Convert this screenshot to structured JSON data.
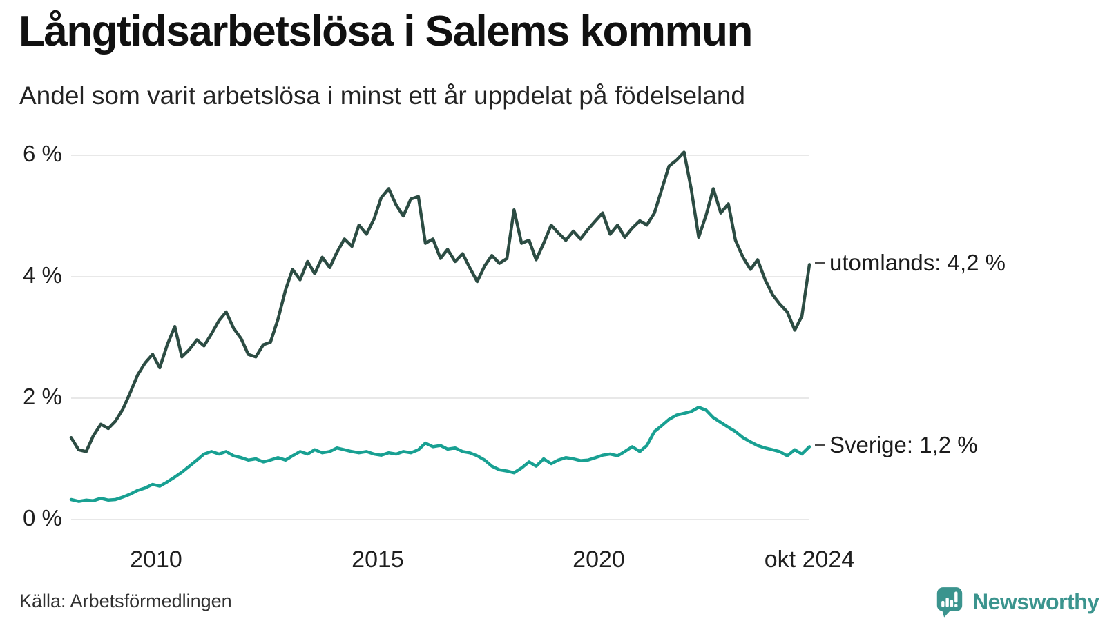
{
  "header": {
    "title": "Långtidsarbetslösa i Salems kommun",
    "subtitle": "Andel som varit arbetslösa i minst ett år uppdelat på födelseland"
  },
  "chart_data": {
    "type": "line",
    "title": "Långtidsarbetslösa i Salems kommun",
    "xlabel": "",
    "ylabel": "",
    "x_unit": "decimal_year_monthly",
    "grid": "horizontal-only",
    "gridline_color": "#e8e8e8",
    "legend_position": "line-end-right",
    "xlim": [
      2008.08,
      2024.75
    ],
    "ylim": [
      0,
      6
    ],
    "y_ticks": [
      {
        "value": 0,
        "label": "0 %"
      },
      {
        "value": 2,
        "label": "2 %"
      },
      {
        "value": 4,
        "label": "4 %"
      },
      {
        "value": 6,
        "label": "6 %"
      }
    ],
    "x_ticks": [
      {
        "value": 2010,
        "label": "2010"
      },
      {
        "value": 2015,
        "label": "2015"
      },
      {
        "value": 2020,
        "label": "2020"
      },
      {
        "value": 2024.75,
        "label": "okt 2024"
      }
    ],
    "x": [
      2008.08,
      2008.25,
      2008.42,
      2008.58,
      2008.75,
      2008.92,
      2009.08,
      2009.25,
      2009.42,
      2009.58,
      2009.75,
      2009.92,
      2010.08,
      2010.25,
      2010.42,
      2010.58,
      2010.75,
      2010.92,
      2011.08,
      2011.25,
      2011.42,
      2011.58,
      2011.75,
      2011.92,
      2012.08,
      2012.25,
      2012.42,
      2012.58,
      2012.75,
      2012.92,
      2013.08,
      2013.25,
      2013.42,
      2013.58,
      2013.75,
      2013.92,
      2014.08,
      2014.25,
      2014.42,
      2014.58,
      2014.75,
      2014.92,
      2015.08,
      2015.25,
      2015.42,
      2015.58,
      2015.75,
      2015.92,
      2016.08,
      2016.25,
      2016.42,
      2016.58,
      2016.75,
      2016.92,
      2017.08,
      2017.25,
      2017.42,
      2017.58,
      2017.75,
      2017.92,
      2018.08,
      2018.25,
      2018.42,
      2018.58,
      2018.75,
      2018.92,
      2019.08,
      2019.25,
      2019.42,
      2019.58,
      2019.75,
      2019.92,
      2020.08,
      2020.25,
      2020.42,
      2020.58,
      2020.75,
      2020.92,
      2021.08,
      2021.25,
      2021.42,
      2021.58,
      2021.75,
      2021.92,
      2022.08,
      2022.25,
      2022.42,
      2022.58,
      2022.75,
      2022.92,
      2023.08,
      2023.25,
      2023.42,
      2023.58,
      2023.75,
      2023.92,
      2024.08,
      2024.25,
      2024.42,
      2024.58,
      2024.75
    ],
    "series": [
      {
        "name": "utomlands",
        "end_label": "utomlands: 4,2 %",
        "last_value": 4.2,
        "color": "#2c4c43",
        "values": [
          1.35,
          1.15,
          1.12,
          1.38,
          1.57,
          1.5,
          1.62,
          1.82,
          2.1,
          2.38,
          2.58,
          2.72,
          2.5,
          2.88,
          3.18,
          2.68,
          2.8,
          2.96,
          2.86,
          3.06,
          3.28,
          3.42,
          3.15,
          2.98,
          2.72,
          2.68,
          2.88,
          2.92,
          3.3,
          3.78,
          4.12,
          3.95,
          4.25,
          4.05,
          4.32,
          4.15,
          4.4,
          4.62,
          4.5,
          4.85,
          4.7,
          4.95,
          5.3,
          5.45,
          5.18,
          5.0,
          5.28,
          5.32,
          4.55,
          4.62,
          4.3,
          4.45,
          4.25,
          4.38,
          4.15,
          3.92,
          4.18,
          4.35,
          4.22,
          4.3,
          5.1,
          4.55,
          4.6,
          4.28,
          4.55,
          4.85,
          4.72,
          4.6,
          4.75,
          4.62,
          4.78,
          4.92,
          5.05,
          4.7,
          4.85,
          4.65,
          4.8,
          4.92,
          4.85,
          5.05,
          5.45,
          5.82,
          5.92,
          6.05,
          5.45,
          4.65,
          5.02,
          5.45,
          5.05,
          5.2,
          4.6,
          4.32,
          4.12,
          4.28,
          3.95,
          3.7,
          3.55,
          3.42,
          3.12,
          3.35,
          4.2
        ]
      },
      {
        "name": "Sverige",
        "end_label": "Sverige: 1,2 %",
        "last_value": 1.2,
        "color": "#18a092",
        "values": [
          0.33,
          0.3,
          0.32,
          0.31,
          0.35,
          0.32,
          0.33,
          0.37,
          0.42,
          0.48,
          0.52,
          0.58,
          0.55,
          0.62,
          0.7,
          0.78,
          0.88,
          0.98,
          1.08,
          1.12,
          1.08,
          1.12,
          1.05,
          1.02,
          0.98,
          1.0,
          0.95,
          0.98,
          1.02,
          0.98,
          1.05,
          1.12,
          1.08,
          1.15,
          1.1,
          1.12,
          1.18,
          1.15,
          1.12,
          1.1,
          1.12,
          1.08,
          1.06,
          1.1,
          1.08,
          1.12,
          1.1,
          1.15,
          1.26,
          1.2,
          1.22,
          1.16,
          1.18,
          1.12,
          1.1,
          1.05,
          0.98,
          0.88,
          0.82,
          0.8,
          0.77,
          0.85,
          0.95,
          0.88,
          1.0,
          0.92,
          0.98,
          1.02,
          1.0,
          0.97,
          0.98,
          1.02,
          1.06,
          1.08,
          1.05,
          1.12,
          1.2,
          1.12,
          1.22,
          1.45,
          1.55,
          1.65,
          1.72,
          1.75,
          1.78,
          1.85,
          1.8,
          1.68,
          1.6,
          1.52,
          1.45,
          1.35,
          1.28,
          1.22,
          1.18,
          1.15,
          1.12,
          1.05,
          1.15,
          1.08,
          1.2
        ]
      }
    ]
  },
  "footer": {
    "source": "Källa: Arbetsförmedlingen",
    "brand_name": "Newsworthy",
    "brand_color": "#3b948e"
  }
}
